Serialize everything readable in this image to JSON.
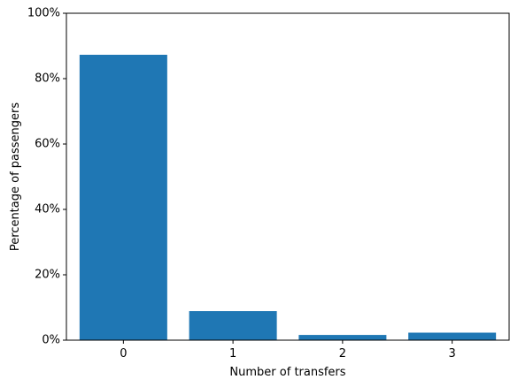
{
  "chart_data": {
    "type": "bar",
    "categories": [
      "0",
      "1",
      "2",
      "3"
    ],
    "values": [
      87.3,
      8.9,
      1.6,
      2.3
    ],
    "title": "",
    "xlabel": "Number of transfers",
    "ylabel": "Percentage of passengers",
    "ylim": [
      0,
      100
    ],
    "yticks": [
      0,
      20,
      40,
      60,
      80,
      100
    ],
    "ytick_labels": [
      "0%",
      "20%",
      "40%",
      "60%",
      "80%",
      "100%"
    ],
    "grid": false,
    "legend": "none",
    "bar_color": "#1f77b4",
    "axis_color": "#000000"
  }
}
